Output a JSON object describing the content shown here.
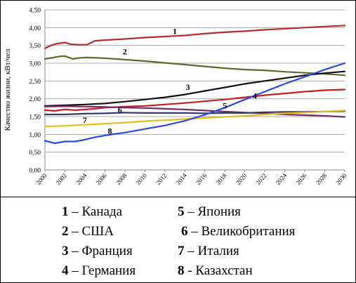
{
  "chart_data": {
    "type": "line",
    "ylabel": "Качество жизни, кВт/чел",
    "xlabel": "",
    "ylim": [
      0,
      4.5
    ],
    "yticks": [
      "0,00",
      "0,50",
      "1,00",
      "1,50",
      "2,00",
      "2,50",
      "3,00",
      "3,50",
      "4,00",
      "4,50"
    ],
    "x": [
      2000,
      2002,
      2004,
      2006,
      2008,
      2010,
      2012,
      2014,
      2016,
      2018,
      2020,
      2022,
      2024,
      2026,
      2028,
      2030
    ],
    "xticks": [
      "2000",
      "2002",
      "2004",
      "2006",
      "2008",
      "2010",
      "2012",
      "2014",
      "2016",
      "2018",
      "2020",
      "2022",
      "2024",
      "2026",
      "2028",
      "2030"
    ],
    "grid": true,
    "legend_position": "bottom",
    "series": [
      {
        "label": "1",
        "name": "Канада",
        "color": "#b03030",
        "points": [
          [
            2000,
            3.42
          ],
          [
            2000.6,
            3.5
          ],
          [
            2001.2,
            3.55
          ],
          [
            2002,
            3.58
          ],
          [
            2002.6,
            3.53
          ],
          [
            2003.4,
            3.52
          ],
          [
            2004.2,
            3.52
          ],
          [
            2005,
            3.63
          ],
          [
            2006,
            3.65
          ],
          [
            2008,
            3.68
          ],
          [
            2010,
            3.72
          ],
          [
            2012,
            3.75
          ],
          [
            2014,
            3.78
          ],
          [
            2016,
            3.83
          ],
          [
            2018,
            3.87
          ],
          [
            2020,
            3.9
          ],
          [
            2022,
            3.94
          ],
          [
            2024,
            3.97
          ],
          [
            2026,
            4.0
          ],
          [
            2028,
            4.03
          ],
          [
            2030,
            4.06
          ]
        ]
      },
      {
        "label": "2",
        "name": "США",
        "color": "#5a6a2a",
        "points": [
          [
            2000,
            3.12
          ],
          [
            2000.7,
            3.15
          ],
          [
            2001.4,
            3.19
          ],
          [
            2002,
            3.2
          ],
          [
            2002.8,
            3.12
          ],
          [
            2003.5,
            3.15
          ],
          [
            2004.2,
            3.16
          ],
          [
            2006,
            3.14
          ],
          [
            2008,
            3.1
          ],
          [
            2010,
            3.06
          ],
          [
            2012,
            3.01
          ],
          [
            2014,
            2.96
          ],
          [
            2016,
            2.91
          ],
          [
            2018,
            2.86
          ],
          [
            2020,
            2.82
          ],
          [
            2022,
            2.8
          ],
          [
            2024,
            2.76
          ],
          [
            2026,
            2.73
          ],
          [
            2028,
            2.7
          ],
          [
            2030,
            2.66
          ]
        ]
      },
      {
        "label": "3",
        "name": "Франция",
        "color": "#111111",
        "points": [
          [
            2000,
            1.8
          ],
          [
            2002,
            1.82
          ],
          [
            2004,
            1.84
          ],
          [
            2006,
            1.87
          ],
          [
            2008,
            1.92
          ],
          [
            2010,
            1.98
          ],
          [
            2012,
            2.04
          ],
          [
            2014,
            2.12
          ],
          [
            2016,
            2.22
          ],
          [
            2018,
            2.32
          ],
          [
            2020,
            2.42
          ],
          [
            2022,
            2.5
          ],
          [
            2024,
            2.58
          ],
          [
            2026,
            2.66
          ],
          [
            2028,
            2.72
          ],
          [
            2030,
            2.77
          ]
        ]
      },
      {
        "label": "4",
        "name": "Германия",
        "color": "#c02020",
        "points": [
          [
            2000,
            1.68
          ],
          [
            2001,
            1.66
          ],
          [
            2002,
            1.7
          ],
          [
            2003,
            1.68
          ],
          [
            2004,
            1.7
          ],
          [
            2005,
            1.72
          ],
          [
            2006,
            1.75
          ],
          [
            2008,
            1.78
          ],
          [
            2010,
            1.8
          ],
          [
            2012,
            1.84
          ],
          [
            2014,
            1.88
          ],
          [
            2016,
            1.93
          ],
          [
            2018,
            1.98
          ],
          [
            2020,
            2.04
          ],
          [
            2022,
            2.1
          ],
          [
            2024,
            2.15
          ],
          [
            2026,
            2.2
          ],
          [
            2028,
            2.24
          ],
          [
            2030,
            2.26
          ]
        ]
      },
      {
        "label": "5",
        "name": "Япония",
        "color": "#7a2a6a",
        "points": [
          [
            2000,
            1.78
          ],
          [
            2002,
            1.79
          ],
          [
            2004,
            1.78
          ],
          [
            2006,
            1.77
          ],
          [
            2008,
            1.75
          ],
          [
            2010,
            1.74
          ],
          [
            2012,
            1.72
          ],
          [
            2014,
            1.7
          ],
          [
            2016,
            1.67
          ],
          [
            2018,
            1.64
          ],
          [
            2020,
            1.61
          ],
          [
            2022,
            1.59
          ],
          [
            2024,
            1.56
          ],
          [
            2026,
            1.54
          ],
          [
            2028,
            1.52
          ],
          [
            2030,
            1.49
          ]
        ]
      },
      {
        "label": "6",
        "name": "Великобритания",
        "color": "#3a3a6a",
        "points": [
          [
            2000,
            1.56
          ],
          [
            2002,
            1.56
          ],
          [
            2004,
            1.58
          ],
          [
            2006,
            1.59
          ],
          [
            2008,
            1.61
          ],
          [
            2010,
            1.6
          ],
          [
            2012,
            1.6
          ],
          [
            2014,
            1.6
          ],
          [
            2016,
            1.59
          ],
          [
            2018,
            1.6
          ],
          [
            2020,
            1.6
          ],
          [
            2022,
            1.62
          ],
          [
            2024,
            1.63
          ],
          [
            2026,
            1.63
          ],
          [
            2028,
            1.64
          ],
          [
            2030,
            1.65
          ]
        ]
      },
      {
        "label": "7",
        "name": "Италия",
        "color": "#e0c020",
        "points": [
          [
            2000,
            1.22
          ],
          [
            2002,
            1.24
          ],
          [
            2004,
            1.27
          ],
          [
            2006,
            1.3
          ],
          [
            2008,
            1.33
          ],
          [
            2010,
            1.37
          ],
          [
            2012,
            1.4
          ],
          [
            2014,
            1.43
          ],
          [
            2016,
            1.46
          ],
          [
            2018,
            1.49
          ],
          [
            2020,
            1.52
          ],
          [
            2022,
            1.56
          ],
          [
            2024,
            1.59
          ],
          [
            2026,
            1.61
          ],
          [
            2028,
            1.64
          ],
          [
            2030,
            1.67
          ]
        ]
      },
      {
        "label": "8",
        "name": "Казахстан",
        "color": "#2a4ad8",
        "points": [
          [
            2000,
            0.82
          ],
          [
            2001,
            0.75
          ],
          [
            2002,
            0.8
          ],
          [
            2003,
            0.8
          ],
          [
            2004,
            0.85
          ],
          [
            2005,
            0.92
          ],
          [
            2006,
            0.97
          ],
          [
            2008,
            1.05
          ],
          [
            2010,
            1.15
          ],
          [
            2012,
            1.25
          ],
          [
            2014,
            1.38
          ],
          [
            2016,
            1.55
          ],
          [
            2018,
            1.75
          ],
          [
            2020,
            1.98
          ],
          [
            2022,
            2.2
          ],
          [
            2024,
            2.42
          ],
          [
            2026,
            2.62
          ],
          [
            2028,
            2.82
          ],
          [
            2030,
            3.0
          ]
        ]
      }
    ],
    "series_labels": [
      {
        "text": "1",
        "x": 2013,
        "y": 3.82
      },
      {
        "text": "2",
        "x": 2008,
        "y": 3.25
      },
      {
        "text": "3",
        "x": 2014.3,
        "y": 2.25
      },
      {
        "text": "4",
        "x": 2021,
        "y": 2.0
      },
      {
        "text": "5",
        "x": 2018,
        "y": 1.73
      },
      {
        "text": "6",
        "x": 2007.5,
        "y": 1.61
      },
      {
        "text": "7",
        "x": 2004,
        "y": 1.32
      },
      {
        "text": "8",
        "x": 2006.5,
        "y": 1.02
      }
    ]
  },
  "legend": [
    {
      "num": "1",
      "sep": " – ",
      "name": "Канада"
    },
    {
      "num": "2",
      "sep": " – ",
      "name": "США"
    },
    {
      "num": "3",
      "sep": " – ",
      "name": "Франция"
    },
    {
      "num": "4",
      "sep": " – ",
      "name": "Германия"
    },
    {
      "num": "5",
      "sep": " – ",
      "name": "Япония"
    },
    {
      "num": "6",
      "sep": " – ",
      "name": "Великобритания"
    },
    {
      "num": "7",
      "sep": " – ",
      "name": "Италия"
    },
    {
      "num": "8",
      "sep": " - ",
      "name": "Казахстан"
    }
  ]
}
